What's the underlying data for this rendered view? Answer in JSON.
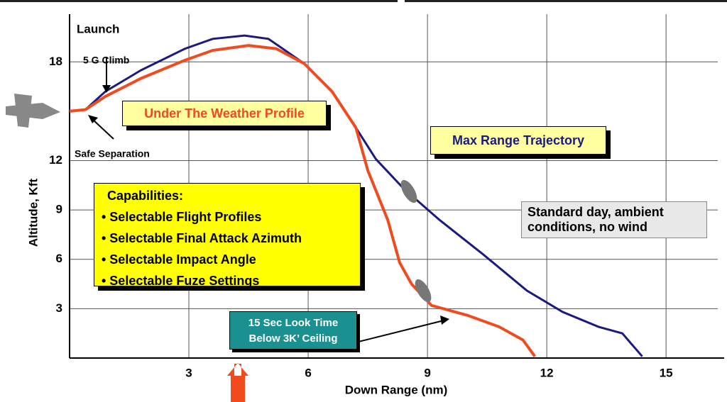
{
  "chart_data": {
    "type": "line",
    "x_label": "Down Range (nm)",
    "y_label": "Altitude, Kft",
    "xlim": [
      0,
      16.3
    ],
    "ylim": [
      0,
      20.9
    ],
    "xticks": [
      3,
      6,
      9,
      12,
      15
    ],
    "yticks": [
      3,
      6,
      9,
      12,
      18
    ],
    "grid": true,
    "series": [
      {
        "name": "Max Range Trajectory",
        "color": "#1a1a80",
        "x": [
          0,
          0.4,
          0.9,
          1.8,
          2.9,
          3.6,
          4.4,
          5.0,
          5.9,
          6.6,
          7.2,
          7.7,
          8.4,
          9.3,
          10.4,
          11.5,
          12.4,
          13.3,
          13.9,
          14.4
        ],
        "values": [
          15.0,
          15.1,
          16.2,
          17.5,
          18.8,
          19.4,
          19.6,
          19.4,
          17.9,
          16.2,
          14.0,
          12.1,
          10.3,
          8.4,
          6.3,
          4.1,
          2.8,
          1.9,
          1.5,
          0.1
        ]
      },
      {
        "name": "Under The Weather Profile",
        "color": "#f04a1e",
        "x": [
          0,
          0.4,
          0.9,
          1.8,
          2.9,
          3.6,
          4.5,
          5.2,
          5.9,
          6.6,
          7.2,
          7.5,
          8.0,
          8.3,
          8.6,
          9.1,
          10.0,
          10.8,
          11.4,
          11.7
        ],
        "values": [
          15.0,
          15.1,
          15.9,
          17.0,
          18.1,
          18.7,
          19.0,
          18.8,
          17.9,
          16.2,
          14.0,
          11.4,
          8.4,
          5.8,
          4.5,
          3.2,
          2.6,
          1.9,
          1.1,
          0.1
        ]
      }
    ],
    "annotations": {
      "launch": "Launch",
      "climb": "5 G Climb",
      "separation": "Safe Separation",
      "conditions": "Standard day, ambient conditions, no wind",
      "look_time": [
        "15 Sec Look Time",
        "Below 3K’ Ceiling"
      ],
      "capabilities": {
        "heading": "Capabilities:",
        "items": [
          "• Selectable Flight Profiles",
          "• Selectable Final Attack Azimuth",
          "• Selectable Impact Angle",
          "• Selectable Fuze Settings"
        ]
      }
    }
  }
}
